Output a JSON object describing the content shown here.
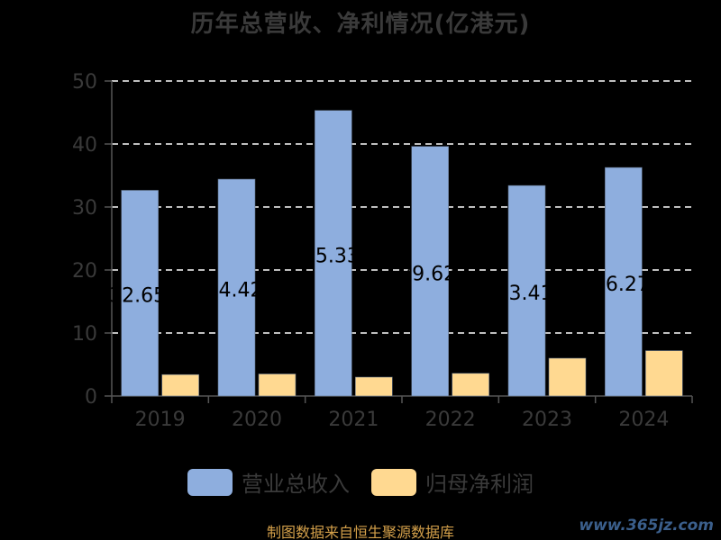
{
  "chart_data": {
    "type": "bar",
    "title": "历年总营收、净利情况(亿港元)",
    "categories": [
      "2019",
      "2020",
      "2021",
      "2022",
      "2023",
      "2024"
    ],
    "series": [
      {
        "name": "营业总收入",
        "values": [
          32.65,
          34.42,
          45.33,
          39.62,
          33.41,
          36.27
        ],
        "color": "#8eaede"
      },
      {
        "name": "归母净利润",
        "values": [
          3.4,
          3.5,
          3.0,
          3.6,
          6.0,
          7.2
        ],
        "color": "#ffd991"
      }
    ],
    "data_labels": [
      "32.65",
      "34.42",
      "45.33",
      "39.62",
      "33.41",
      "36.27"
    ],
    "ylim": [
      0,
      50
    ],
    "yticks": [
      "0",
      "10",
      "20",
      "30",
      "40",
      "50"
    ],
    "grid": true,
    "legend_position": "bottom"
  },
  "footer": {
    "source": "制图数据来自恒生聚源数据库"
  },
  "watermark": "www.365jz.com"
}
